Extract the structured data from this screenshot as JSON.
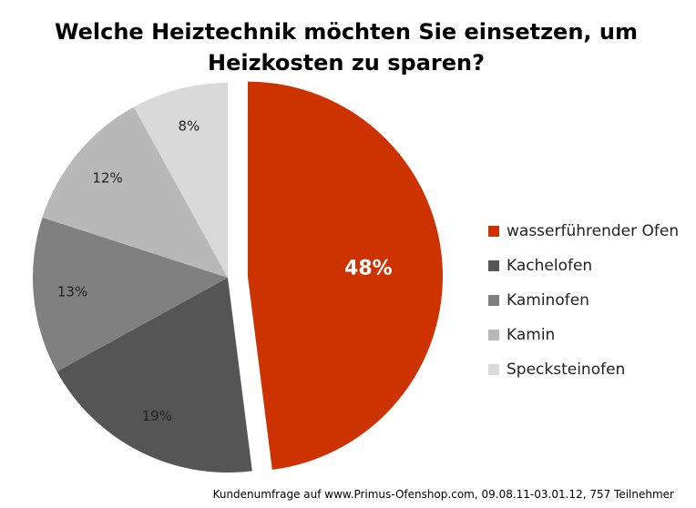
{
  "chart_data": {
    "type": "pie",
    "title_lines": [
      "Welche Heiztechnik möchten Sie einsetzen, um",
      "Heizkosten zu sparen?"
    ],
    "slices": [
      {
        "label": "wasserführender Ofen",
        "value": 48,
        "display": "48%",
        "color": "#cc3300"
      },
      {
        "label": "Kachelofen",
        "value": 19,
        "display": "19%",
        "color": "#555555"
      },
      {
        "label": "Kaminofen",
        "value": 13,
        "display": "13%",
        "color": "#808080"
      },
      {
        "label": "Kamin",
        "value": 12,
        "display": "12%",
        "color": "#b8b8b8"
      },
      {
        "label": "Specksteinofen",
        "value": 8,
        "display": "8%",
        "color": "#d9d9d9"
      }
    ],
    "legend_position": "right",
    "exploded_slice": "wasserführender Ofen"
  },
  "footnote": "Kundenumfrage auf  www.Primus-Ofenshop.com, 09.08.11-03.01.12, 757 Teilnehmer"
}
